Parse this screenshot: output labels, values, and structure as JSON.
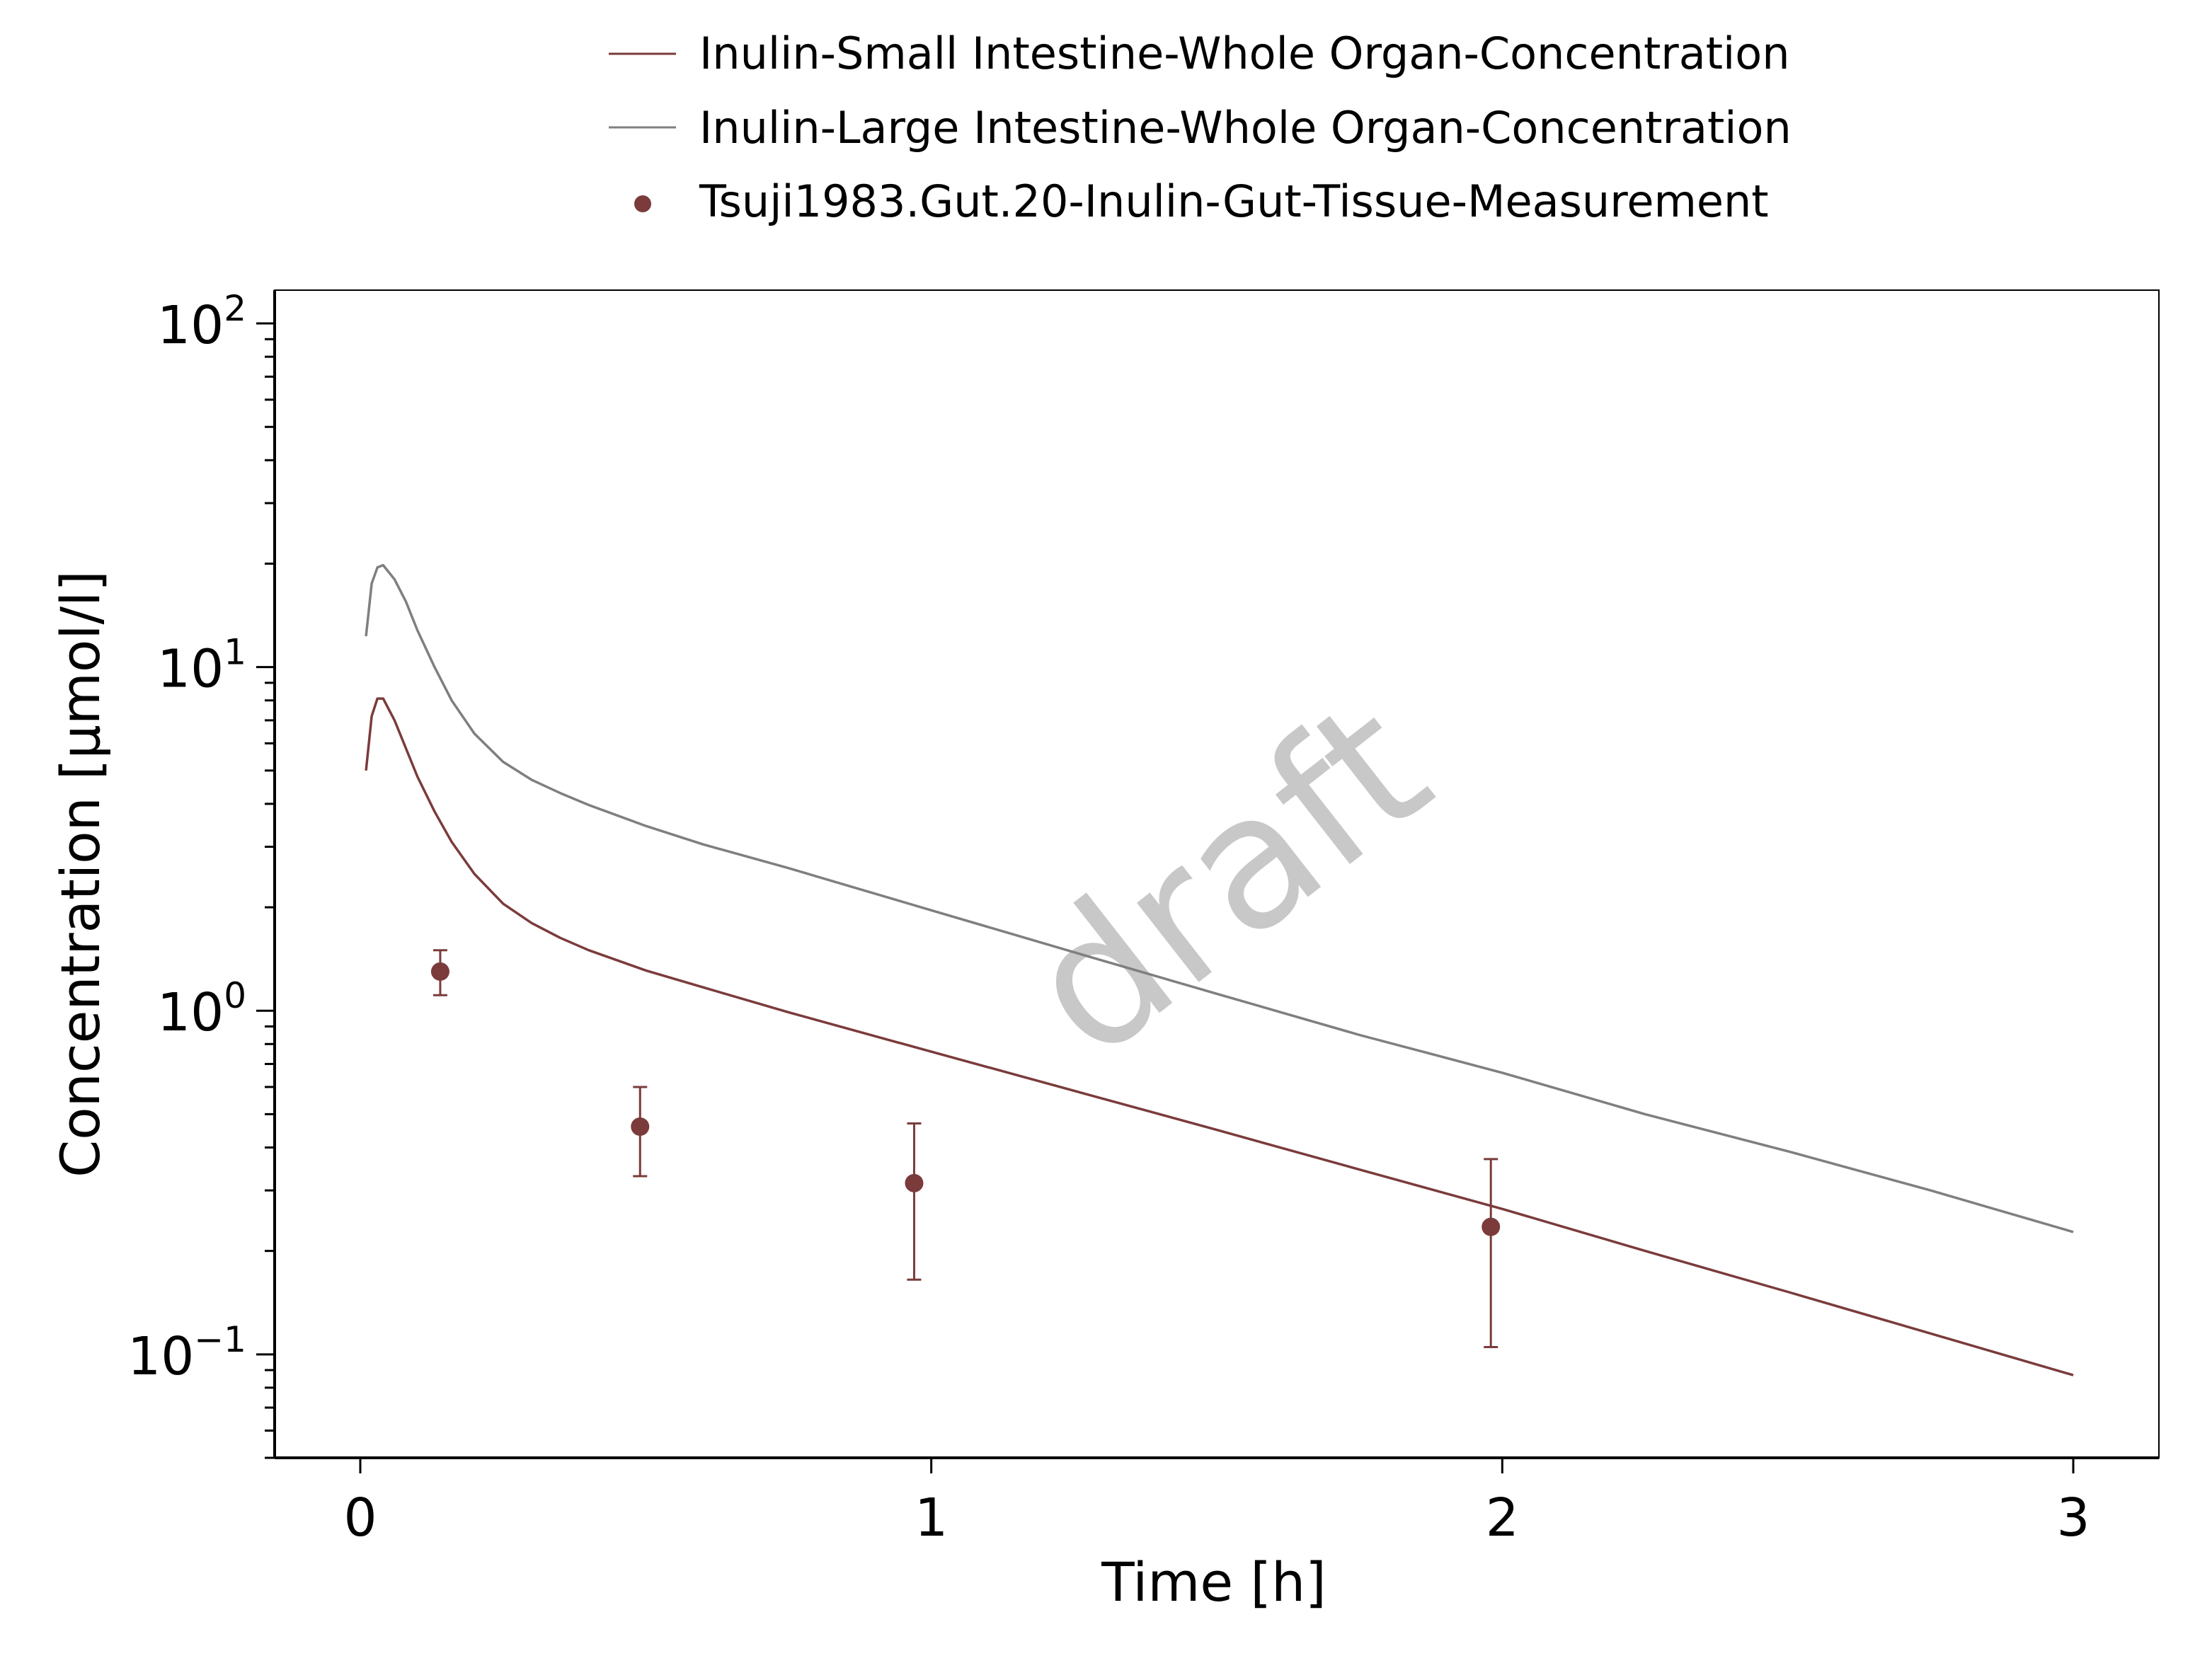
{
  "chart_data": {
    "type": "line",
    "xlabel": "Time [h]",
    "ylabel": "Concentration [µmol/l]",
    "xlim": [
      -0.15,
      3.15
    ],
    "ylim": [
      0.05,
      125
    ],
    "yscale": "log",
    "x_ticks": [
      0,
      1,
      2,
      3
    ],
    "x_tick_labels": [
      "0",
      "1",
      "2",
      "3"
    ],
    "y_ticks": [
      0.1,
      1,
      10,
      100
    ],
    "y_tick_labels": [
      {
        "base": "10",
        "exp": "−1"
      },
      {
        "base": "10",
        "exp": "0"
      },
      {
        "base": "10",
        "exp": "1"
      },
      {
        "base": "10",
        "exp": "2"
      }
    ],
    "grid": false,
    "legend_position": "top-center",
    "watermark": "draft",
    "series": [
      {
        "name": "Inulin-Small Intestine-Whole Organ-Concentration",
        "kind": "line",
        "color": "#7b3b3b",
        "x": [
          0.01,
          0.02,
          0.03,
          0.04,
          0.06,
          0.08,
          0.1,
          0.13,
          0.16,
          0.2,
          0.25,
          0.3,
          0.35,
          0.4,
          0.5,
          0.6,
          0.75,
          1.0,
          1.25,
          1.5,
          1.75,
          2.0,
          2.25,
          2.5,
          2.75,
          3.0
        ],
        "y": [
          5.0,
          7.2,
          8.1,
          8.1,
          7.0,
          5.8,
          4.8,
          3.8,
          3.1,
          2.5,
          2.05,
          1.8,
          1.63,
          1.5,
          1.31,
          1.17,
          0.99,
          0.76,
          0.585,
          0.45,
          0.345,
          0.265,
          0.2,
          0.152,
          0.115,
          0.087
        ]
      },
      {
        "name": "Inulin-Large Intestine-Whole Organ-Concentration",
        "kind": "line",
        "color": "#7f7f7f",
        "x": [
          0.01,
          0.02,
          0.03,
          0.04,
          0.06,
          0.08,
          0.1,
          0.13,
          0.16,
          0.2,
          0.25,
          0.3,
          0.35,
          0.4,
          0.5,
          0.6,
          0.75,
          1.0,
          1.25,
          1.5,
          1.75,
          2.0,
          2.25,
          2.5,
          2.75,
          3.0
        ],
        "y": [
          12.3,
          17.5,
          19.5,
          19.8,
          18.0,
          15.5,
          12.8,
          10.0,
          8.0,
          6.4,
          5.3,
          4.7,
          4.3,
          3.97,
          3.45,
          3.05,
          2.6,
          1.96,
          1.48,
          1.12,
          0.85,
          0.66,
          0.5,
          0.39,
          0.3,
          0.227
        ]
      },
      {
        "name": "Tsuji1983.Gut.20-Inulin-Gut-Tissue-Measurement",
        "kind": "points",
        "color": "#7b3b3b",
        "x": [
          0.14,
          0.49,
          0.97,
          1.98
        ],
        "y": [
          1.3,
          0.46,
          0.315,
          0.235
        ],
        "y_low": [
          1.11,
          0.33,
          0.165,
          0.105
        ],
        "y_high": [
          1.5,
          0.6,
          0.47,
          0.37
        ]
      }
    ]
  }
}
